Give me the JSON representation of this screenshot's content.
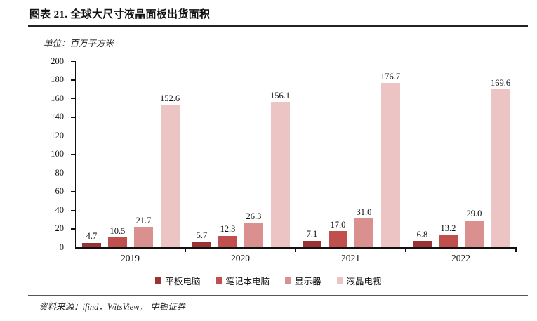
{
  "header": {
    "title": "图表 21. 全球大尺寸液晶面板出货面积"
  },
  "chart": {
    "unit_label": "单位：百万平方米"
  },
  "chart_data": {
    "type": "bar",
    "title": "全球大尺寸液晶面板出货面积",
    "unit": "百万平方米",
    "categories": [
      "2019",
      "2020",
      "2021",
      "2022"
    ],
    "series": [
      {
        "name": "平板电脑",
        "color": "#9a3334",
        "values": [
          4.7,
          5.7,
          7.1,
          6.8
        ]
      },
      {
        "name": "笔记本电脑",
        "color": "#c0504d",
        "values": [
          10.5,
          12.3,
          17.0,
          13.2
        ]
      },
      {
        "name": "显示器",
        "color": "#d9908f",
        "values": [
          21.7,
          26.3,
          31.0,
          29.0
        ]
      },
      {
        "name": "液晶电视",
        "color": "#ecc4c3",
        "values": [
          152.6,
          156.1,
          176.7,
          169.6
        ]
      }
    ],
    "ylim": [
      0,
      200
    ],
    "ytick_step": 20,
    "yticks": [
      0,
      20,
      40,
      60,
      80,
      100,
      120,
      140,
      160,
      180,
      200
    ],
    "value_labels": true,
    "value_label_format": "one-decimal",
    "legend_position": "bottom",
    "grid": false
  },
  "footer": {
    "source": "资料来源：ifind，WitsView， 中银证券"
  }
}
